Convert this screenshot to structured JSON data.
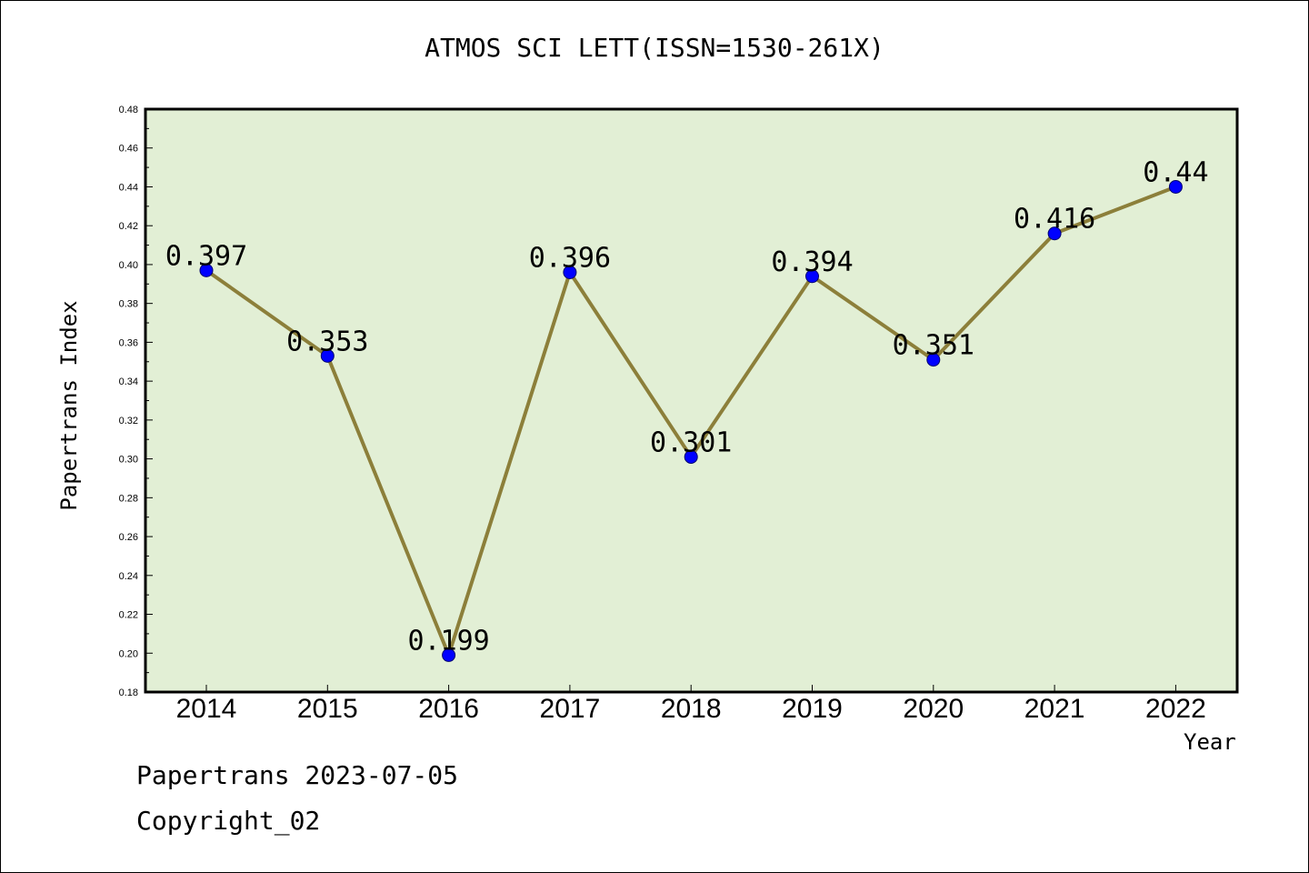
{
  "chart_data": {
    "type": "line",
    "title": "ATMOS SCI LETT(ISSN=1530-261X)",
    "xlabel": "Year",
    "ylabel": "Papertrans Index",
    "categories": [
      "2014",
      "2015",
      "2016",
      "2017",
      "2018",
      "2019",
      "2020",
      "2021",
      "2022"
    ],
    "series": [
      {
        "values": [
          0.397,
          0.353,
          0.199,
          0.396,
          0.301,
          0.394,
          0.351,
          0.416,
          0.44
        ]
      }
    ],
    "data_labels": [
      "0.397",
      "0.353",
      "0.199",
      "0.396",
      "0.301",
      "0.394",
      "0.351",
      "0.416",
      "0.44"
    ],
    "ylim": [
      0.18,
      0.48
    ],
    "yticks": [
      "0.18",
      "0.20",
      "0.22",
      "0.24",
      "0.26",
      "0.28",
      "0.30",
      "0.32",
      "0.34",
      "0.36",
      "0.38",
      "0.40",
      "0.42",
      "0.44",
      "0.46",
      "0.48"
    ],
    "grid": false,
    "legend": "none",
    "colors": {
      "plot_background": "#e2efd5",
      "line": "#8c7f3a",
      "marker": "#0000ff"
    }
  },
  "footer": {
    "line1": "Papertrans 2023-07-05",
    "line2": "Copyright_02"
  }
}
